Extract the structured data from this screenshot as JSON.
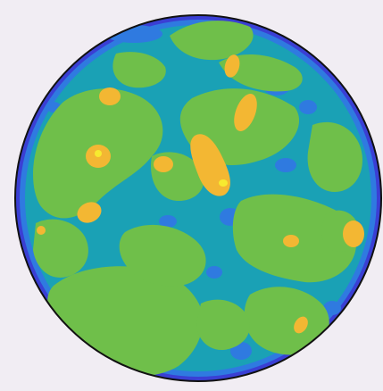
{
  "figure": {
    "background_color": "#f1edf3",
    "outline_color": "#111111",
    "palette": {
      "deep_blue": "#3a3fd4",
      "blue": "#2f7ae0",
      "teal": "#1aa1b5",
      "green": "#6fbf4a",
      "orange": "#f3b733",
      "yellow": "#f7ea2f"
    }
  }
}
